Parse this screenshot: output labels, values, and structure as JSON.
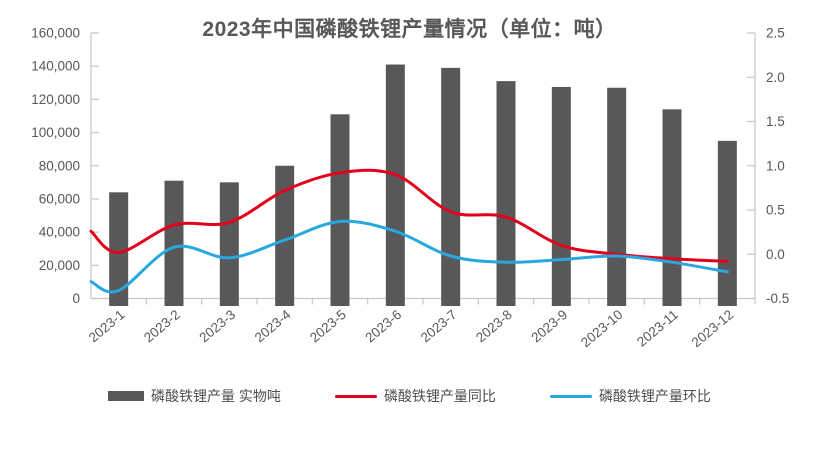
{
  "chart_data": {
    "type": "bar",
    "combo": "bar+line",
    "title": "2023年中国磷酸铁锂产量情况（单位：吨）",
    "categories": [
      "2023-1",
      "2023-2",
      "2023-3",
      "2023-4",
      "2023-5",
      "2023-6",
      "2023-7",
      "2023-8",
      "2023-9",
      "2023-10",
      "2023-11",
      "2023-12"
    ],
    "bar_series": {
      "name": "磷酸铁锂产量 实物吨",
      "axis": "left",
      "color": "#58585a",
      "values": [
        64000,
        71000,
        70000,
        80000,
        111000,
        141000,
        139000,
        131000,
        127500,
        127000,
        114000,
        95000
      ]
    },
    "line_series": [
      {
        "name": "磷酸铁锂产量同比",
        "axis": "right",
        "color": "#e2001a",
        "edge_start_value": 0.26,
        "values": [
          0.02,
          0.33,
          0.36,
          0.72,
          0.92,
          0.9,
          0.48,
          0.42,
          0.1,
          0.0,
          -0.05,
          -0.08
        ]
      },
      {
        "name": "磷酸铁锂产量环比",
        "axis": "right",
        "color": "#29a8e0",
        "edge_start_value": -0.31,
        "values": [
          -0.41,
          0.08,
          -0.04,
          0.16,
          0.37,
          0.26,
          -0.02,
          -0.09,
          -0.06,
          -0.02,
          -0.09,
          -0.2
        ]
      }
    ],
    "left_axis": {
      "min": 0,
      "max": 160000,
      "tick_labels": [
        "160,000",
        "140,000",
        "120,000",
        "100,000",
        "80,000",
        "60,000",
        "40,000",
        "20,000",
        "0"
      ]
    },
    "right_axis": {
      "min": -0.5,
      "max": 2.5,
      "tick_labels": [
        "2.5",
        "2.0",
        "1.5",
        "1.0",
        "0.5",
        "0.0",
        "-0.5"
      ]
    },
    "legend_position": "bottom",
    "grid": "off"
  },
  "colors": {
    "background": "#ffffff",
    "text": "#595757",
    "axis_line": "#c9c9c9"
  }
}
